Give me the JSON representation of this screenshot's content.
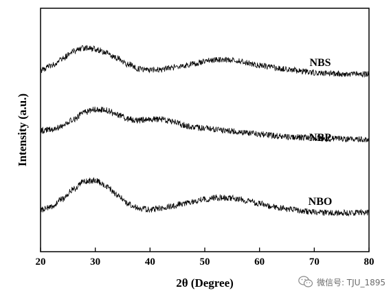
{
  "chart_data": {
    "type": "line",
    "xlabel": "2θ (Degree)",
    "ylabel": "Intensity (a.u.)",
    "xlim": [
      20,
      80
    ],
    "xticks": [
      20,
      30,
      40,
      50,
      60,
      70,
      80
    ],
    "yticks_shown": false,
    "grid": false,
    "legend": "inline labels at right",
    "series": [
      {
        "name": "NBS",
        "x": [
          20,
          22,
          24,
          26,
          28,
          30,
          32,
          34,
          36,
          38,
          40,
          42,
          44,
          46,
          48,
          50,
          52,
          54,
          56,
          58,
          60,
          62,
          64,
          66,
          68,
          70,
          72,
          74,
          76,
          78,
          80
        ],
        "y": [
          0.0,
          0.2,
          0.5,
          0.8,
          0.95,
          0.9,
          0.75,
          0.5,
          0.25,
          0.05,
          0.0,
          0.05,
          0.1,
          0.18,
          0.28,
          0.38,
          0.45,
          0.45,
          0.4,
          0.3,
          0.2,
          0.12,
          0.05,
          0.0,
          -0.05,
          -0.1,
          -0.12,
          -0.15,
          -0.17,
          -0.18,
          -0.18
        ]
      },
      {
        "name": "NBP",
        "x": [
          20,
          22,
          24,
          26,
          28,
          30,
          32,
          34,
          36,
          38,
          40,
          42,
          44,
          46,
          48,
          50,
          52,
          54,
          56,
          58,
          60,
          62,
          64,
          66,
          68,
          70,
          72,
          74,
          76,
          78,
          80
        ],
        "y": [
          0.0,
          0.05,
          0.2,
          0.5,
          0.8,
          0.95,
          0.9,
          0.7,
          0.5,
          0.45,
          0.5,
          0.5,
          0.4,
          0.25,
          0.15,
          0.1,
          0.05,
          0.0,
          -0.05,
          -0.1,
          -0.15,
          -0.2,
          -0.25,
          -0.28,
          -0.3,
          -0.33,
          -0.35,
          -0.36,
          -0.37,
          -0.38,
          -0.38
        ]
      },
      {
        "name": "NBO",
        "x": [
          20,
          22,
          24,
          26,
          28,
          30,
          32,
          34,
          36,
          38,
          40,
          42,
          44,
          46,
          48,
          50,
          52,
          54,
          56,
          58,
          60,
          62,
          64,
          66,
          68,
          70,
          72,
          74,
          76,
          78,
          80
        ],
        "y": [
          0.0,
          0.1,
          0.35,
          0.7,
          0.95,
          1.0,
          0.8,
          0.5,
          0.2,
          0.05,
          0.0,
          0.05,
          0.12,
          0.2,
          0.28,
          0.35,
          0.4,
          0.4,
          0.38,
          0.3,
          0.2,
          0.12,
          0.05,
          0.0,
          -0.05,
          -0.08,
          -0.1,
          -0.1,
          -0.1,
          -0.1,
          -0.1
        ]
      }
    ]
  },
  "watermark": {
    "text": "微信号: TJU_1895",
    "icon": "wechat-icon",
    "color": "#6b6b6b"
  }
}
